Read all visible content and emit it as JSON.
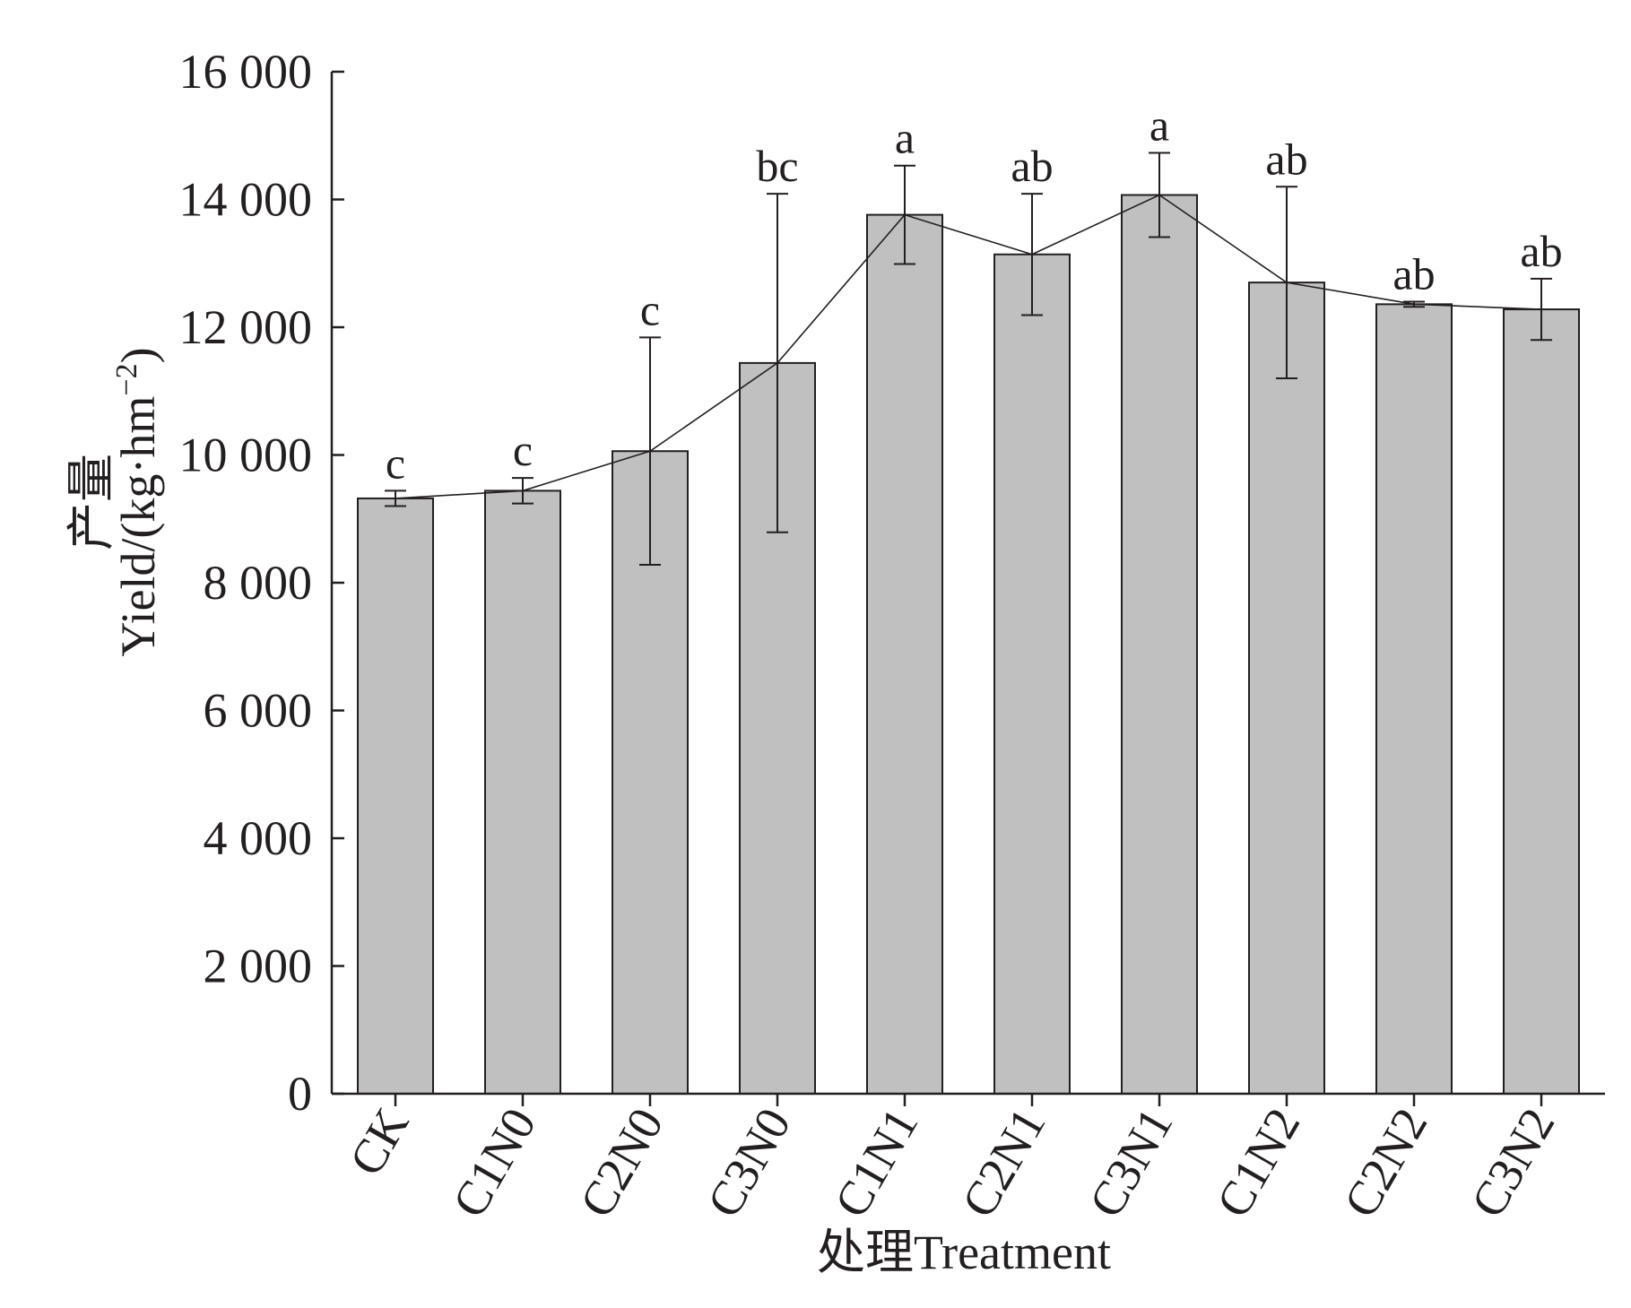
{
  "chart_data": {
    "type": "bar",
    "xlabel": "处理Treatment",
    "ylabel_cn": "产量",
    "ylabel_en": "Yield/(kg·hm",
    "ylabel_sup": "−2",
    "ylabel_close": ")",
    "ylim": [
      0,
      16000
    ],
    "yticks": [
      0,
      2000,
      4000,
      6000,
      8000,
      10000,
      12000,
      14000,
      16000
    ],
    "ytick_labels": [
      "0",
      "2 000",
      "4 000",
      "6 000",
      "8 000",
      "10 000",
      "12 000",
      "14 000",
      "16 000"
    ],
    "categories": [
      "CK",
      "C1N0",
      "C2N0",
      "C3N0",
      "C1N1",
      "C2N1",
      "C3N1",
      "C1N2",
      "C2N2",
      "C3N2"
    ],
    "values": [
      9320,
      9440,
      10060,
      11440,
      13760,
      13140,
      14070,
      12700,
      12360,
      12280
    ],
    "error": [
      120,
      200,
      1780,
      2650,
      770,
      950,
      660,
      1500,
      40,
      480
    ],
    "significance": [
      "c",
      "c",
      "c",
      "bc",
      "a",
      "ab",
      "a",
      "ab",
      "ab",
      "ab"
    ],
    "trend_line": true,
    "grid": false,
    "colors": {
      "bar_fill": "#c0c0c0",
      "bar_stroke": "#231f20",
      "ink": "#231f20"
    }
  }
}
